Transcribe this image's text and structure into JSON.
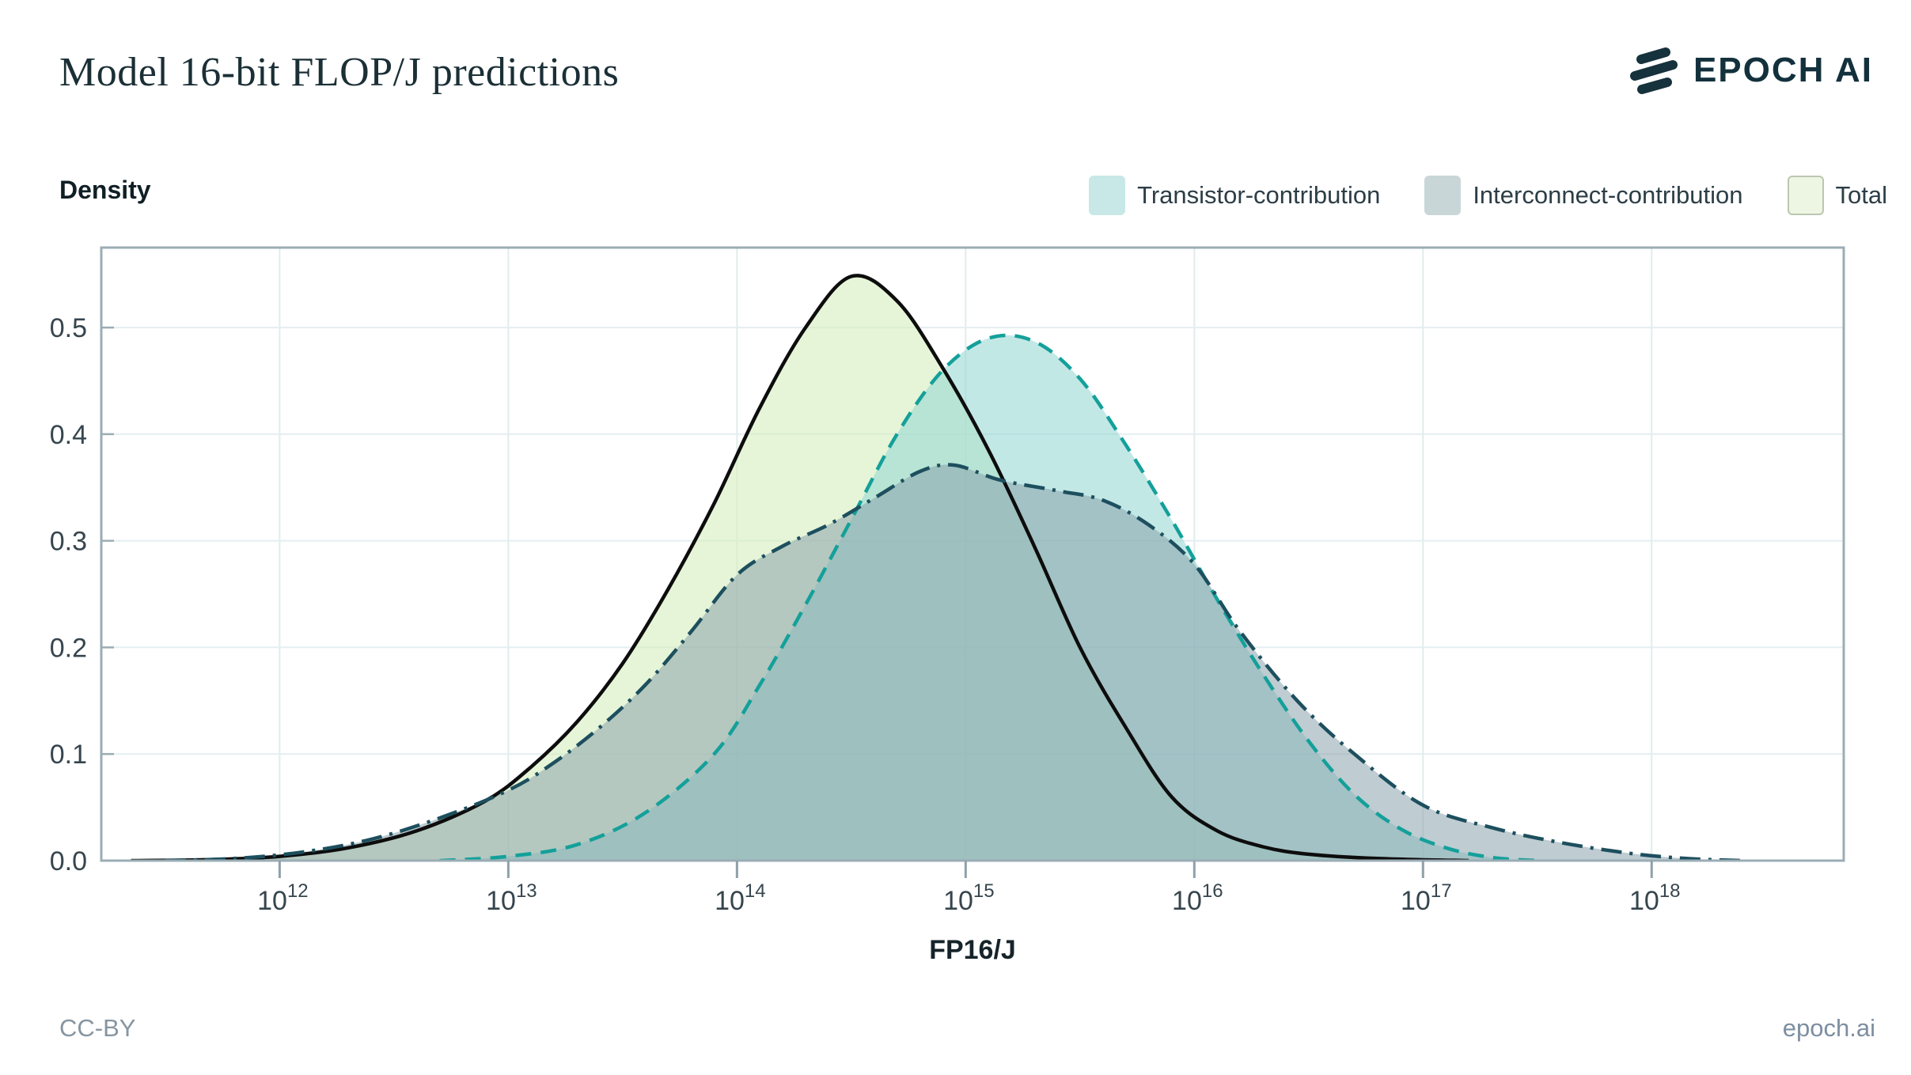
{
  "header": {
    "title": "Model 16-bit FLOP/J predictions",
    "brand": "EPOCH AI"
  },
  "legend": {
    "items": [
      {
        "label": "Transistor-contribution",
        "swatch_color": "#c7e8e6",
        "swatch_border": "#c7e8e6"
      },
      {
        "label": "Interconnect-contribution",
        "swatch_color": "#c9d6d8",
        "swatch_border": "#c9d6d8"
      },
      {
        "label": "Total",
        "swatch_color": "#ecf6e3",
        "swatch_border": "#bcc6b2"
      }
    ]
  },
  "footer": {
    "license": "CC-BY",
    "site": "epoch.ai"
  },
  "chart_data": {
    "type": "area",
    "title": "Model 16-bit FLOP/J predictions",
    "grid": true,
    "legend_position": "top-right",
    "x_axis": {
      "label": "FP16/J",
      "scale": "log10",
      "tick_exponents": [
        12,
        13,
        14,
        15,
        16,
        17,
        18
      ],
      "range_exponents": [
        11.22,
        18.84
      ]
    },
    "y_axis": {
      "label": "Density",
      "ticks": [
        0.0,
        0.1,
        0.2,
        0.3,
        0.4,
        0.5
      ],
      "range": [
        0,
        0.575
      ]
    },
    "series": [
      {
        "name": "Transistor-contribution",
        "z": 1,
        "line_color": "#14a09a",
        "line_style": "dashed",
        "line_width": 4.5,
        "fill_color": "#8fd6d2",
        "fill_opacity": 0.55,
        "peak": {
          "x_exponent": 15.1,
          "density": 0.49
        },
        "points": [
          [
            12.7,
            0
          ],
          [
            13.0,
            0.004
          ],
          [
            13.3,
            0.015
          ],
          [
            13.6,
            0.045
          ],
          [
            13.9,
            0.1
          ],
          [
            14.1,
            0.165
          ],
          [
            14.3,
            0.24
          ],
          [
            14.5,
            0.32
          ],
          [
            14.7,
            0.4
          ],
          [
            14.9,
            0.46
          ],
          [
            15.1,
            0.49
          ],
          [
            15.3,
            0.487
          ],
          [
            15.5,
            0.452
          ],
          [
            15.7,
            0.39
          ],
          [
            15.9,
            0.32
          ],
          [
            16.1,
            0.245
          ],
          [
            16.3,
            0.175
          ],
          [
            16.5,
            0.112
          ],
          [
            16.7,
            0.062
          ],
          [
            16.9,
            0.03
          ],
          [
            17.1,
            0.012
          ],
          [
            17.3,
            0.003
          ],
          [
            17.5,
            0
          ]
        ]
      },
      {
        "name": "Interconnect-contribution",
        "z": 2,
        "line_color": "#1d4f5e",
        "line_style": "dashdot",
        "line_width": 4.5,
        "fill_color": "#8aa3ab",
        "fill_opacity": 0.55,
        "peak": {
          "x_exponent": 14.95,
          "density": 0.371
        },
        "points": [
          [
            11.5,
            0
          ],
          [
            11.8,
            0.002
          ],
          [
            12.1,
            0.008
          ],
          [
            12.4,
            0.02
          ],
          [
            12.7,
            0.04
          ],
          [
            13.0,
            0.066
          ],
          [
            13.2,
            0.092
          ],
          [
            13.4,
            0.125
          ],
          [
            13.6,
            0.165
          ],
          [
            13.8,
            0.215
          ],
          [
            14.0,
            0.268
          ],
          [
            14.2,
            0.295
          ],
          [
            14.4,
            0.315
          ],
          [
            14.6,
            0.34
          ],
          [
            14.8,
            0.365
          ],
          [
            14.95,
            0.371
          ],
          [
            15.15,
            0.357
          ],
          [
            15.4,
            0.347
          ],
          [
            15.6,
            0.338
          ],
          [
            15.8,
            0.315
          ],
          [
            16.0,
            0.278
          ],
          [
            16.2,
            0.215
          ],
          [
            16.45,
            0.15
          ],
          [
            16.7,
            0.1
          ],
          [
            17.0,
            0.052
          ],
          [
            17.3,
            0.031
          ],
          [
            17.6,
            0.017
          ],
          [
            17.9,
            0.007
          ],
          [
            18.15,
            0.002
          ],
          [
            18.4,
            0
          ]
        ]
      },
      {
        "name": "Total",
        "z": 0,
        "line_color": "#0d0d0d",
        "line_style": "solid",
        "line_width": 4.5,
        "fill_color": "#d5eebe",
        "fill_opacity": 0.6,
        "peak": {
          "x_exponent": 14.5,
          "density": 0.548
        },
        "points": [
          [
            11.35,
            0
          ],
          [
            11.7,
            0.001
          ],
          [
            12.0,
            0.004
          ],
          [
            12.3,
            0.012
          ],
          [
            12.6,
            0.028
          ],
          [
            12.9,
            0.056
          ],
          [
            13.1,
            0.088
          ],
          [
            13.3,
            0.13
          ],
          [
            13.5,
            0.185
          ],
          [
            13.7,
            0.255
          ],
          [
            13.9,
            0.335
          ],
          [
            14.1,
            0.425
          ],
          [
            14.3,
            0.5
          ],
          [
            14.5,
            0.548
          ],
          [
            14.7,
            0.525
          ],
          [
            14.9,
            0.462
          ],
          [
            15.1,
            0.385
          ],
          [
            15.3,
            0.295
          ],
          [
            15.5,
            0.2
          ],
          [
            15.7,
            0.125
          ],
          [
            15.9,
            0.06
          ],
          [
            16.1,
            0.028
          ],
          [
            16.3,
            0.013
          ],
          [
            16.5,
            0.006
          ],
          [
            16.8,
            0.002
          ],
          [
            17.2,
            0
          ]
        ]
      }
    ]
  }
}
